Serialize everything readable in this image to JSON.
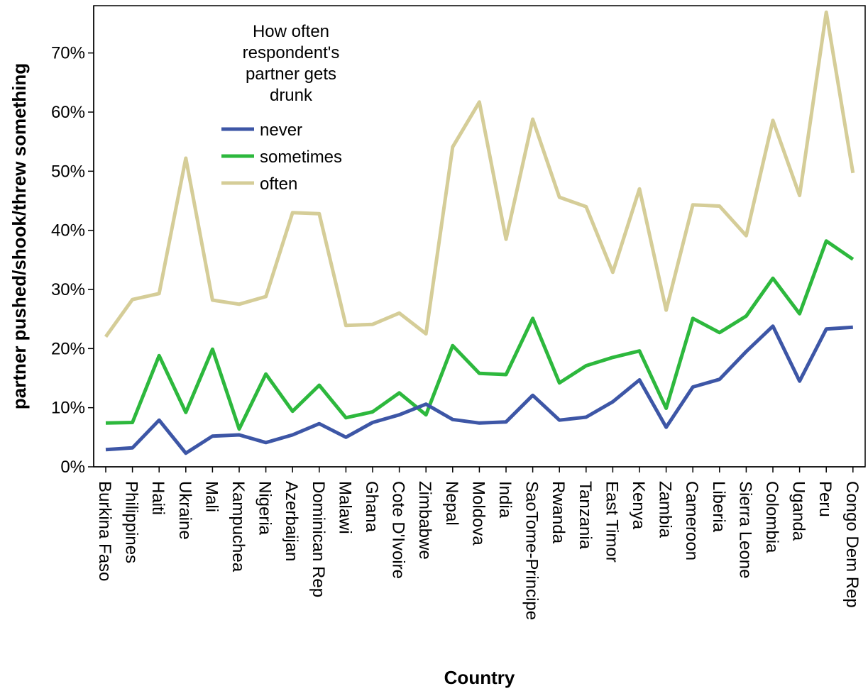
{
  "chart_data": {
    "type": "line",
    "xlabel": "Country",
    "ylabel": "partner pushed/shook/threw something",
    "ylim": [
      0,
      78
    ],
    "y_ticks": [
      0,
      10,
      20,
      30,
      40,
      50,
      60,
      70
    ],
    "y_tick_labels": [
      "0%",
      "10%",
      "20%",
      "30%",
      "40%",
      "50%",
      "60%",
      "70%"
    ],
    "grid": false,
    "legend": {
      "title": "How often respondent's partner gets drunk",
      "title_lines": [
        "How often",
        "respondent's",
        "partner gets",
        "drunk"
      ],
      "placement": "top-left"
    },
    "categories": [
      "Burkina Faso",
      "Philippines",
      "Haiti",
      "Ukraine",
      "Mali",
      "Kampuchea",
      "Nigeria",
      "Azerbaijan",
      "Dominican Rep",
      "Malawi",
      "Ghana",
      "Cote D'Ivoire",
      "Zimbabwe",
      "Nepal",
      "Moldova",
      "India",
      "SaoTome-Principe",
      "Rwanda",
      "Tanzania",
      "East Timor",
      "Kenya",
      "Zambia",
      "Cameroon",
      "Liberia",
      "Sierra Leone",
      "Colombia",
      "Uganda",
      "Peru",
      "Congo Dem Rep"
    ],
    "series": [
      {
        "name": "never",
        "color": "#3d56a6",
        "values": [
          2.9,
          3.2,
          7.9,
          2.3,
          5.2,
          5.4,
          4.1,
          5.4,
          7.3,
          5.0,
          7.5,
          8.8,
          10.6,
          8.0,
          7.4,
          7.6,
          12.1,
          7.9,
          8.4,
          11.0,
          14.7,
          6.7,
          13.5,
          14.8,
          19.5,
          23.8,
          14.5,
          23.3,
          23.6
        ]
      },
      {
        "name": "sometimes",
        "color": "#2db83d",
        "values": [
          7.4,
          7.5,
          18.8,
          9.2,
          19.9,
          6.4,
          15.7,
          9.4,
          13.8,
          8.3,
          9.3,
          12.5,
          8.8,
          20.5,
          15.8,
          15.6,
          25.1,
          14.2,
          17.1,
          18.5,
          19.6,
          9.9,
          25.1,
          22.7,
          25.5,
          31.9,
          25.9,
          38.2,
          35.1
        ]
      },
      {
        "name": "often",
        "color": "#d5cd98",
        "values": [
          22.0,
          28.3,
          29.3,
          52.2,
          28.2,
          27.5,
          28.8,
          43.0,
          42.8,
          23.9,
          24.1,
          26.0,
          22.5,
          54.1,
          61.7,
          38.5,
          58.8,
          45.6,
          44.0,
          32.9,
          47.0,
          26.5,
          44.3,
          44.1,
          39.1,
          58.6,
          45.9,
          76.9,
          49.7
        ]
      }
    ]
  }
}
